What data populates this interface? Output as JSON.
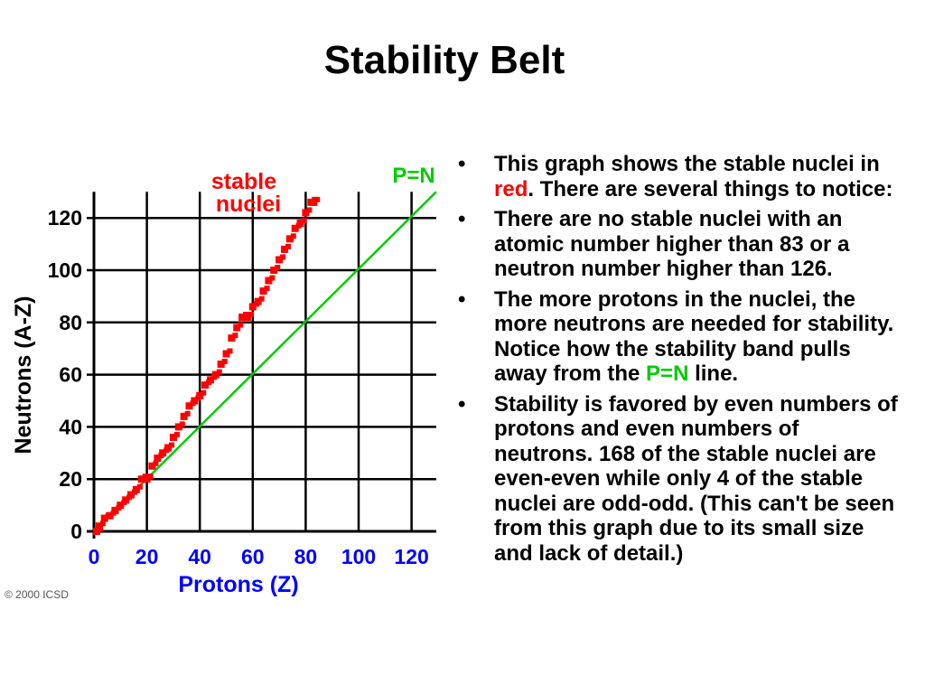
{
  "slide": {
    "title": "Stability Belt",
    "bullets": [
      {
        "parts": [
          "This graph shows the stable nuclei in ",
          "red",
          ".  There are several things to notice:"
        ]
      },
      {
        "text": "There are no stable nuclei with an atomic number higher than 83 or a  neutron number higher than 126."
      },
      {
        "parts": [
          "The more protons in the nuclei, the more neutrons are needed for stability.  Notice how the stability band pulls away from the ",
          "P=N",
          " line."
        ]
      },
      {
        "text": "Stability is favored by even numbers of protons and even numbers of neutrons. 168 of the stable nuclei are even-even while only 4 of the stable nuclei are odd-odd. (This can't be seen from this graph due to its small size and lack of detail.)"
      }
    ]
  },
  "colors": {
    "stable_band": "#ff0000",
    "pn_line": "#00cc00",
    "axis_labels": "#0000ff",
    "grid": "#000000",
    "label_red": "#ff0000",
    "label_green": "#00cc00"
  },
  "chart_data": {
    "type": "scatter",
    "xlabel": "Protons  (Z)",
    "ylabel": "Neutrons  (A-Z)",
    "xlim": [
      0,
      130
    ],
    "ylim": [
      0,
      130
    ],
    "xticks": [
      "0",
      "20",
      "40",
      "60",
      "80",
      "100",
      "120"
    ],
    "yticks": [
      "0",
      "20",
      "40",
      "60",
      "80",
      "100",
      "120"
    ],
    "grid": true,
    "copyright": "© 2000 ICSD",
    "series": [
      {
        "name": "stable nuclei",
        "points": [
          [
            1,
            0
          ],
          [
            2,
            2
          ],
          [
            4,
            5
          ],
          [
            6,
            6
          ],
          [
            8,
            8
          ],
          [
            10,
            10
          ],
          [
            12,
            12
          ],
          [
            14,
            14
          ],
          [
            16,
            16
          ],
          [
            18,
            20
          ],
          [
            20,
            20
          ],
          [
            22,
            25
          ],
          [
            24,
            28
          ],
          [
            26,
            30
          ],
          [
            28,
            32
          ],
          [
            30,
            36
          ],
          [
            32,
            40
          ],
          [
            34,
            44
          ],
          [
            36,
            48
          ],
          [
            38,
            50
          ],
          [
            40,
            52
          ],
          [
            42,
            56
          ],
          [
            44,
            58
          ],
          [
            46,
            60
          ],
          [
            48,
            64
          ],
          [
            50,
            68
          ],
          [
            52,
            74
          ],
          [
            54,
            78
          ],
          [
            56,
            82
          ],
          [
            58,
            82
          ],
          [
            60,
            86
          ],
          [
            62,
            88
          ],
          [
            64,
            92
          ],
          [
            66,
            96
          ],
          [
            68,
            100
          ],
          [
            70,
            104
          ],
          [
            72,
            108
          ],
          [
            74,
            112
          ],
          [
            76,
            116
          ],
          [
            78,
            118
          ],
          [
            80,
            122
          ],
          [
            82,
            126
          ],
          [
            83,
            126
          ]
        ]
      },
      {
        "name": "P=N",
        "line": [
          [
            0,
            0
          ],
          [
            130,
            130
          ]
        ]
      }
    ],
    "annotations": [
      {
        "text": "stable",
        "color": "#ff0000"
      },
      {
        "text": "nuclei",
        "color": "#ff0000"
      },
      {
        "text": "P=N",
        "color": "#00cc00"
      }
    ]
  }
}
